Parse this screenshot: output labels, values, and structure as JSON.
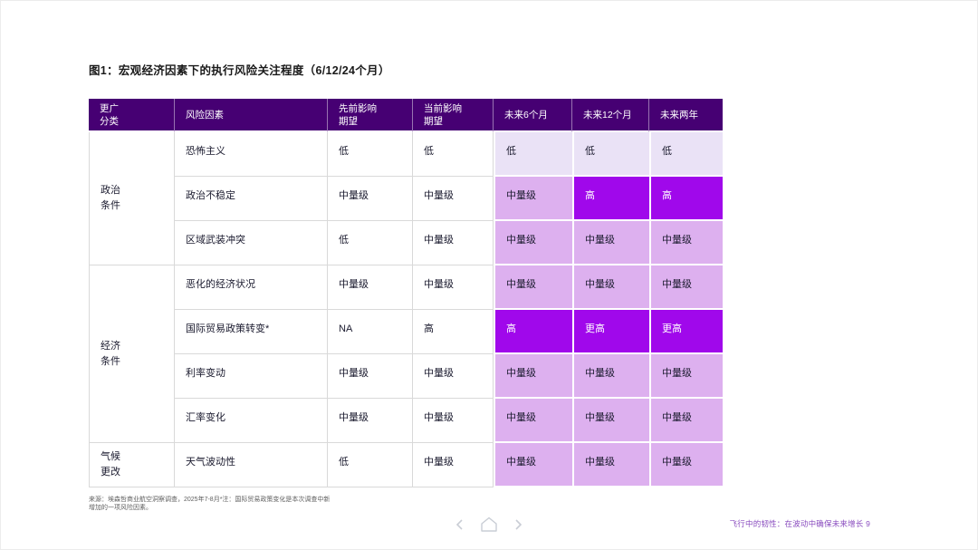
{
  "page": {
    "title": "图1：宏观经济因素下的执行风险关注程度（6/12/24个月）",
    "footnote": "来源：埃森哲商业航空洞察调查，2025年7-8月*注：国际贸易政策变化是本次调查中新增加的一项风险因素。",
    "footer_right": "飞行中的韧性：在波动中确保未来增长 9"
  },
  "colors": {
    "header_bg": "#460073",
    "cell_high": "#a008eb",
    "cell_medium": "#ddb0ef",
    "cell_low": "#eae2f6",
    "footer_accent": "#8a4dbf"
  },
  "nav": {
    "prev_icon": "chevron-left",
    "home_icon": "home",
    "next_icon": "chevron-right"
  },
  "table": {
    "headers": [
      "更广\n分类",
      "风险因素",
      "先前影响\n期望",
      "当前影响\n期望",
      "未来6个月",
      "未来12个月",
      "未来两年"
    ],
    "groups": [
      {
        "category": "政治\n条件",
        "rows": [
          {
            "risk": "恐怖主义",
            "prior": "低",
            "current": "低",
            "future": [
              {
                "label": "低",
                "level": "low"
              },
              {
                "label": "低",
                "level": "low"
              },
              {
                "label": "低",
                "level": "low"
              }
            ]
          },
          {
            "risk": "政治不稳定",
            "prior": "中量级",
            "current": "中量级",
            "future": [
              {
                "label": "中量级",
                "level": "medium"
              },
              {
                "label": "高",
                "level": "high"
              },
              {
                "label": "高",
                "level": "high"
              }
            ]
          },
          {
            "risk": "区域武装冲突",
            "prior": "低",
            "current": "中量级",
            "future": [
              {
                "label": "中量级",
                "level": "medium"
              },
              {
                "label": "中量级",
                "level": "medium"
              },
              {
                "label": "中量级",
                "level": "medium"
              }
            ]
          }
        ]
      },
      {
        "category": "经济\n条件",
        "rows": [
          {
            "risk": "恶化的经济状况",
            "prior": "中量级",
            "current": "中量级",
            "future": [
              {
                "label": "中量级",
                "level": "medium"
              },
              {
                "label": "中量级",
                "level": "medium"
              },
              {
                "label": "中量级",
                "level": "medium"
              }
            ]
          },
          {
            "risk": "国际贸易政策转变*",
            "prior": "NA",
            "current": "高",
            "future": [
              {
                "label": "高",
                "level": "high"
              },
              {
                "label": "更高",
                "level": "high"
              },
              {
                "label": "更高",
                "level": "high"
              }
            ]
          },
          {
            "risk": "利率变动",
            "prior": "中量级",
            "current": "中量级",
            "future": [
              {
                "label": "中量级",
                "level": "medium"
              },
              {
                "label": "中量级",
                "level": "medium"
              },
              {
                "label": "中量级",
                "level": "medium"
              }
            ]
          },
          {
            "risk": "汇率变化",
            "prior": "中量级",
            "current": "中量级",
            "future": [
              {
                "label": "中量级",
                "level": "medium"
              },
              {
                "label": "中量级",
                "level": "medium"
              },
              {
                "label": "中量级",
                "level": "medium"
              }
            ]
          }
        ]
      },
      {
        "category": "气候\n更改",
        "rows": [
          {
            "risk": "天气波动性",
            "prior": "低",
            "current": "中量级",
            "future": [
              {
                "label": "中量级",
                "level": "medium"
              },
              {
                "label": "中量级",
                "level": "medium"
              },
              {
                "label": "中量级",
                "level": "medium"
              }
            ]
          }
        ]
      }
    ]
  }
}
